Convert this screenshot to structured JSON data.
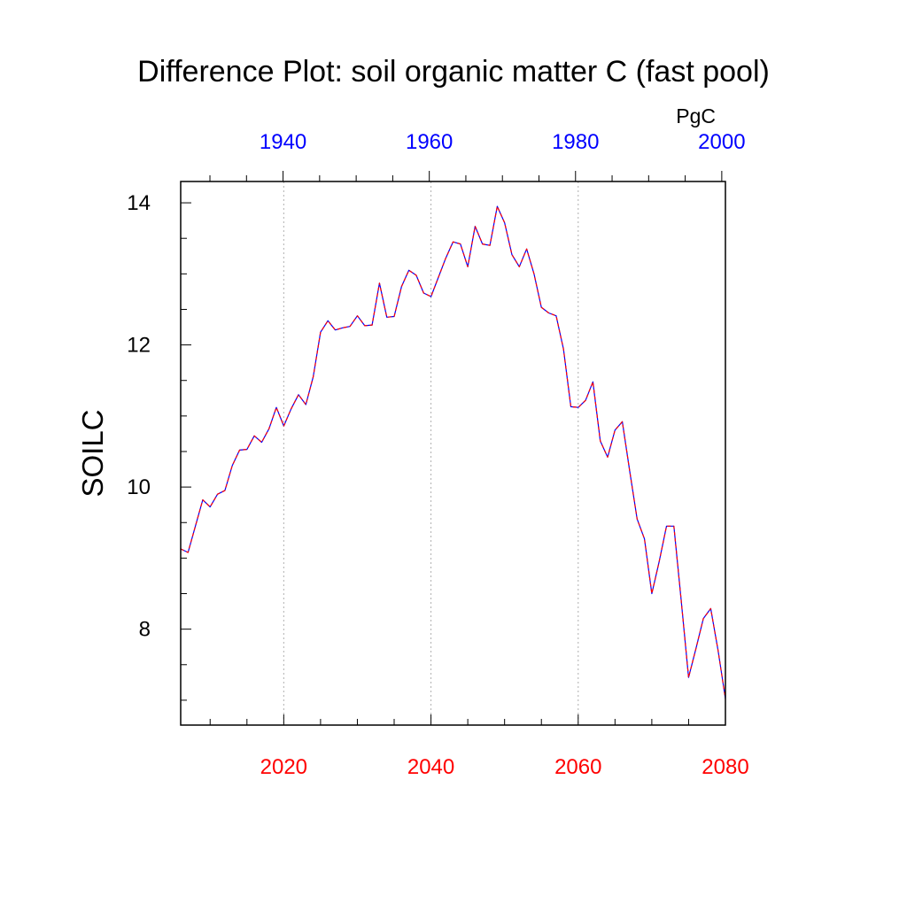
{
  "chart_data": {
    "type": "line",
    "title": "Difference Plot: soil organic matter C (fast pool)",
    "units": "PgC",
    "ylabel": "SOILC",
    "ylim": [
      6.65,
      14.3
    ],
    "yticks": [
      8,
      10,
      12,
      14
    ],
    "bottom_axis": {
      "range": [
        2006,
        2080
      ],
      "ticks": [
        2020,
        2040,
        2060,
        2080
      ],
      "color": "#ff0000"
    },
    "top_axis": {
      "range": [
        1926,
        2000.5
      ],
      "ticks": [
        1940,
        1960,
        1980,
        2000
      ],
      "color": "#0000ff"
    },
    "grid_x": [
      2020,
      2040,
      2060
    ],
    "series": [
      {
        "name": "blue (top axis)",
        "color": "#0000ff",
        "style": "solid",
        "x": [
          2006,
          2007,
          2008,
          2009,
          2010,
          2011,
          2012,
          2013,
          2014,
          2015,
          2016,
          2017,
          2018,
          2019,
          2020,
          2021,
          2022,
          2023,
          2024,
          2025,
          2026,
          2027,
          2028,
          2029,
          2030,
          2031,
          2032,
          2033,
          2034,
          2035,
          2036,
          2037,
          2038,
          2039,
          2040,
          2041,
          2042,
          2043,
          2044,
          2045,
          2046,
          2047,
          2048,
          2049,
          2050,
          2051,
          2052,
          2053,
          2054,
          2055,
          2056,
          2057,
          2058,
          2059,
          2060,
          2061,
          2062,
          2063,
          2064,
          2065,
          2066,
          2067,
          2068,
          2069,
          2070,
          2071,
          2072,
          2073,
          2074,
          2075,
          2076,
          2077,
          2078,
          2079,
          2080
        ],
        "values": [
          9.13,
          9.08,
          9.45,
          9.82,
          9.72,
          9.9,
          9.95,
          10.3,
          10.52,
          10.53,
          10.72,
          10.63,
          10.82,
          11.12,
          10.86,
          11.1,
          11.3,
          11.16,
          11.55,
          12.18,
          12.34,
          12.21,
          12.24,
          12.26,
          12.41,
          12.27,
          12.28,
          12.87,
          12.39,
          12.4,
          12.82,
          13.05,
          12.98,
          12.73,
          12.68,
          12.95,
          13.22,
          13.45,
          13.42,
          13.1,
          13.67,
          13.42,
          13.4,
          13.95,
          13.72,
          13.27,
          13.1,
          13.35,
          13.0,
          12.53,
          12.45,
          12.41,
          11.94,
          11.13,
          11.12,
          11.22,
          11.48,
          10.65,
          10.42,
          10.8,
          10.92,
          10.22,
          9.55,
          9.27,
          8.5,
          8.95,
          9.45,
          9.45,
          8.4,
          7.32,
          7.73,
          8.15,
          8.29,
          7.7,
          7.02
        ]
      },
      {
        "name": "red (bottom axis)",
        "color": "#ff0000",
        "style": "dashed",
        "x": [
          2006,
          2007,
          2008,
          2009,
          2010,
          2011,
          2012,
          2013,
          2014,
          2015,
          2016,
          2017,
          2018,
          2019,
          2020,
          2021,
          2022,
          2023,
          2024,
          2025,
          2026,
          2027,
          2028,
          2029,
          2030,
          2031,
          2032,
          2033,
          2034,
          2035,
          2036,
          2037,
          2038,
          2039,
          2040,
          2041,
          2042,
          2043,
          2044,
          2045,
          2046,
          2047,
          2048,
          2049,
          2050,
          2051,
          2052,
          2053,
          2054,
          2055,
          2056,
          2057,
          2058,
          2059,
          2060,
          2061,
          2062,
          2063,
          2064,
          2065,
          2066,
          2067,
          2068,
          2069,
          2070,
          2071,
          2072,
          2073,
          2074,
          2075,
          2076,
          2077,
          2078,
          2079,
          2080
        ],
        "values": [
          9.13,
          9.08,
          9.45,
          9.82,
          9.72,
          9.9,
          9.95,
          10.3,
          10.52,
          10.53,
          10.72,
          10.63,
          10.82,
          11.12,
          10.86,
          11.1,
          11.3,
          11.16,
          11.55,
          12.18,
          12.34,
          12.21,
          12.24,
          12.26,
          12.41,
          12.27,
          12.28,
          12.87,
          12.39,
          12.4,
          12.82,
          13.05,
          12.98,
          12.73,
          12.68,
          12.95,
          13.22,
          13.45,
          13.42,
          13.1,
          13.67,
          13.42,
          13.4,
          13.95,
          13.72,
          13.27,
          13.1,
          13.35,
          13.0,
          12.53,
          12.45,
          12.41,
          11.94,
          11.13,
          11.12,
          11.22,
          11.48,
          10.65,
          10.42,
          10.8,
          10.92,
          10.22,
          9.55,
          9.27,
          8.5,
          8.95,
          9.45,
          9.45,
          8.4,
          7.32,
          7.73,
          8.15,
          8.29,
          7.7,
          7.02
        ]
      }
    ]
  }
}
